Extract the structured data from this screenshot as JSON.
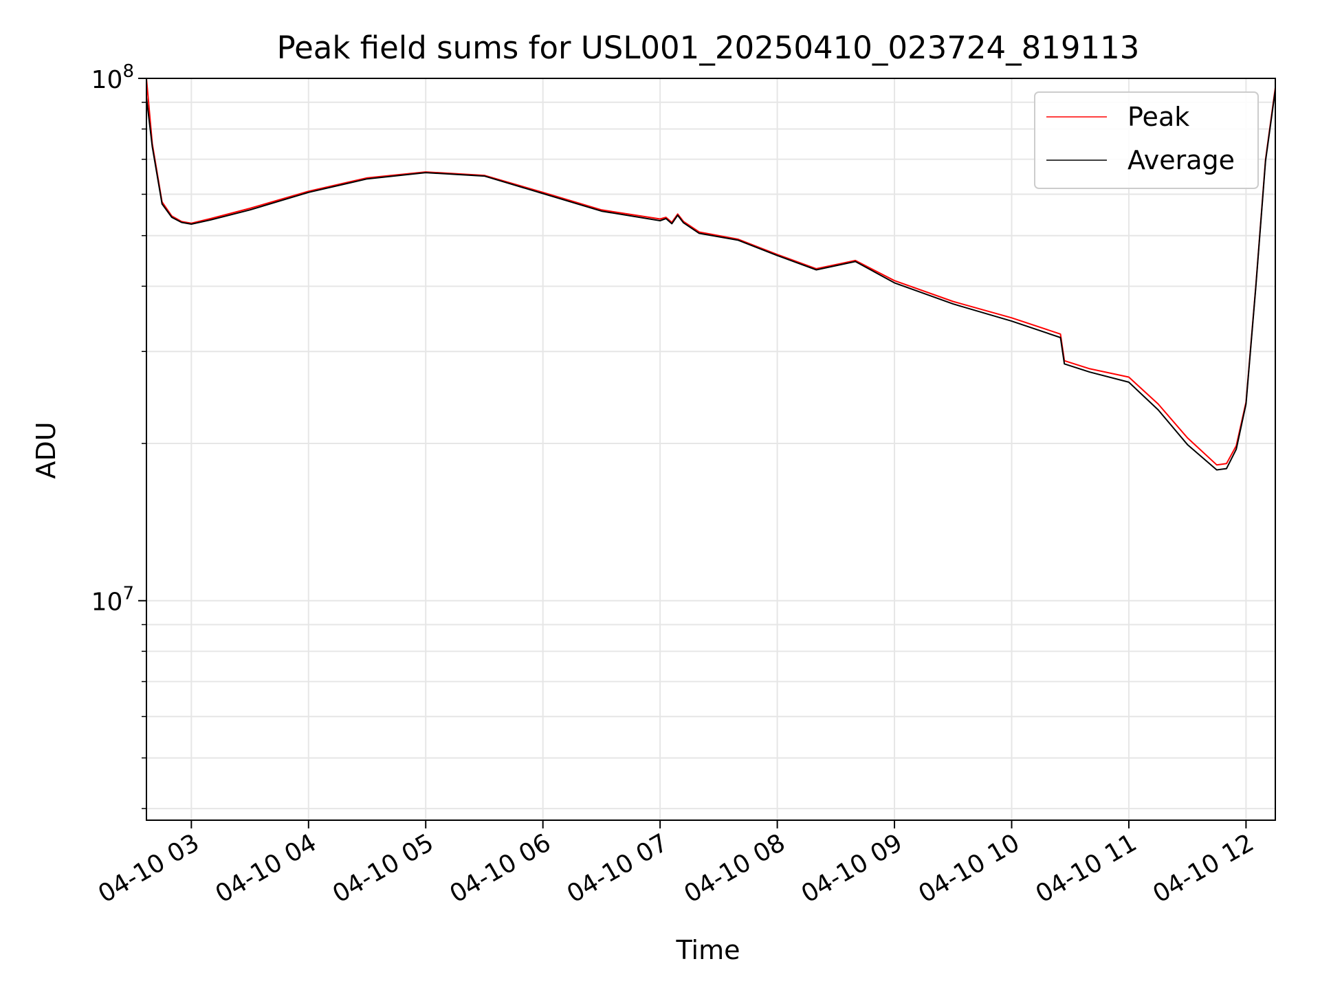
{
  "chart_data": {
    "type": "line",
    "title": "Peak field sums for USL001_20250410_023724_819113",
    "xlabel": "Time",
    "ylabel": "ADU",
    "yscale": "log",
    "ylim": [
      3800000,
      100000000
    ],
    "xlim": [
      "2025-04-10 02:37",
      "2025-04-10 12:15"
    ],
    "grid": true,
    "legend_position": "top-right",
    "x_ticks": [
      "04-10 03",
      "04-10 04",
      "04-10 05",
      "04-10 06",
      "04-10 07",
      "04-10 08",
      "04-10 09",
      "04-10 10",
      "04-10 11",
      "04-10 12"
    ],
    "x_tick_times": [
      "2025-04-10 03:00",
      "2025-04-10 04:00",
      "2025-04-10 05:00",
      "2025-04-10 06:00",
      "2025-04-10 07:00",
      "2025-04-10 08:00",
      "2025-04-10 09:00",
      "2025-04-10 10:00",
      "2025-04-10 11:00",
      "2025-04-10 12:00"
    ],
    "y_ticks": [
      {
        "value": 10000000,
        "base": "10",
        "exp": "7"
      },
      {
        "value": 100000000,
        "base": "10",
        "exp": "8"
      }
    ],
    "x": [
      "2025-04-10 02:37",
      "2025-04-10 02:40",
      "2025-04-10 02:45",
      "2025-04-10 02:50",
      "2025-04-10 02:55",
      "2025-04-10 03:00",
      "2025-04-10 03:10",
      "2025-04-10 03:30",
      "2025-04-10 04:00",
      "2025-04-10 04:30",
      "2025-04-10 05:00",
      "2025-04-10 05:30",
      "2025-04-10 06:00",
      "2025-04-10 06:30",
      "2025-04-10 07:00",
      "2025-04-10 07:03",
      "2025-04-10 07:06",
      "2025-04-10 07:09",
      "2025-04-10 07:12",
      "2025-04-10 07:20",
      "2025-04-10 07:40",
      "2025-04-10 08:00",
      "2025-04-10 08:20",
      "2025-04-10 08:40",
      "2025-04-10 09:00",
      "2025-04-10 09:30",
      "2025-04-10 10:00",
      "2025-04-10 10:25",
      "2025-04-10 10:27",
      "2025-04-10 10:40",
      "2025-04-10 11:00",
      "2025-04-10 11:15",
      "2025-04-10 11:30",
      "2025-04-10 11:45",
      "2025-04-10 11:50",
      "2025-04-10 11:55",
      "2025-04-10 12:00",
      "2025-04-10 12:05",
      "2025-04-10 12:10",
      "2025-04-10 12:15"
    ],
    "series": [
      {
        "name": "Peak",
        "color": "#ff0000",
        "values": [
          100000000,
          75000000,
          58000000,
          54500000,
          53200000,
          52800000,
          53900000,
          56400000,
          60800000,
          64500000,
          66200000,
          65200000,
          60500000,
          56000000,
          53800000,
          54200000,
          53000000,
          55000000,
          53200000,
          50800000,
          49200000,
          46000000,
          43200000,
          44800000,
          41000000,
          37400000,
          34800000,
          32400000,
          28800000,
          27800000,
          26800000,
          23800000,
          20500000,
          18200000,
          18300000,
          19800000,
          24000000,
          40000000,
          70000000,
          96000000
        ]
      },
      {
        "name": "Average",
        "color": "#000000",
        "values": [
          92000000,
          74000000,
          57500000,
          54200000,
          53000000,
          52600000,
          53600000,
          56000000,
          60500000,
          64200000,
          66000000,
          65000000,
          60200000,
          55700000,
          53400000,
          53900000,
          52700000,
          54700000,
          52900000,
          50500000,
          49000000,
          45800000,
          43000000,
          44600000,
          40600000,
          37000000,
          34300000,
          31900000,
          28400000,
          27400000,
          26200000,
          23200000,
          19900000,
          17800000,
          17900000,
          19500000,
          23800000,
          39800000,
          69500000,
          95000000
        ]
      }
    ]
  }
}
